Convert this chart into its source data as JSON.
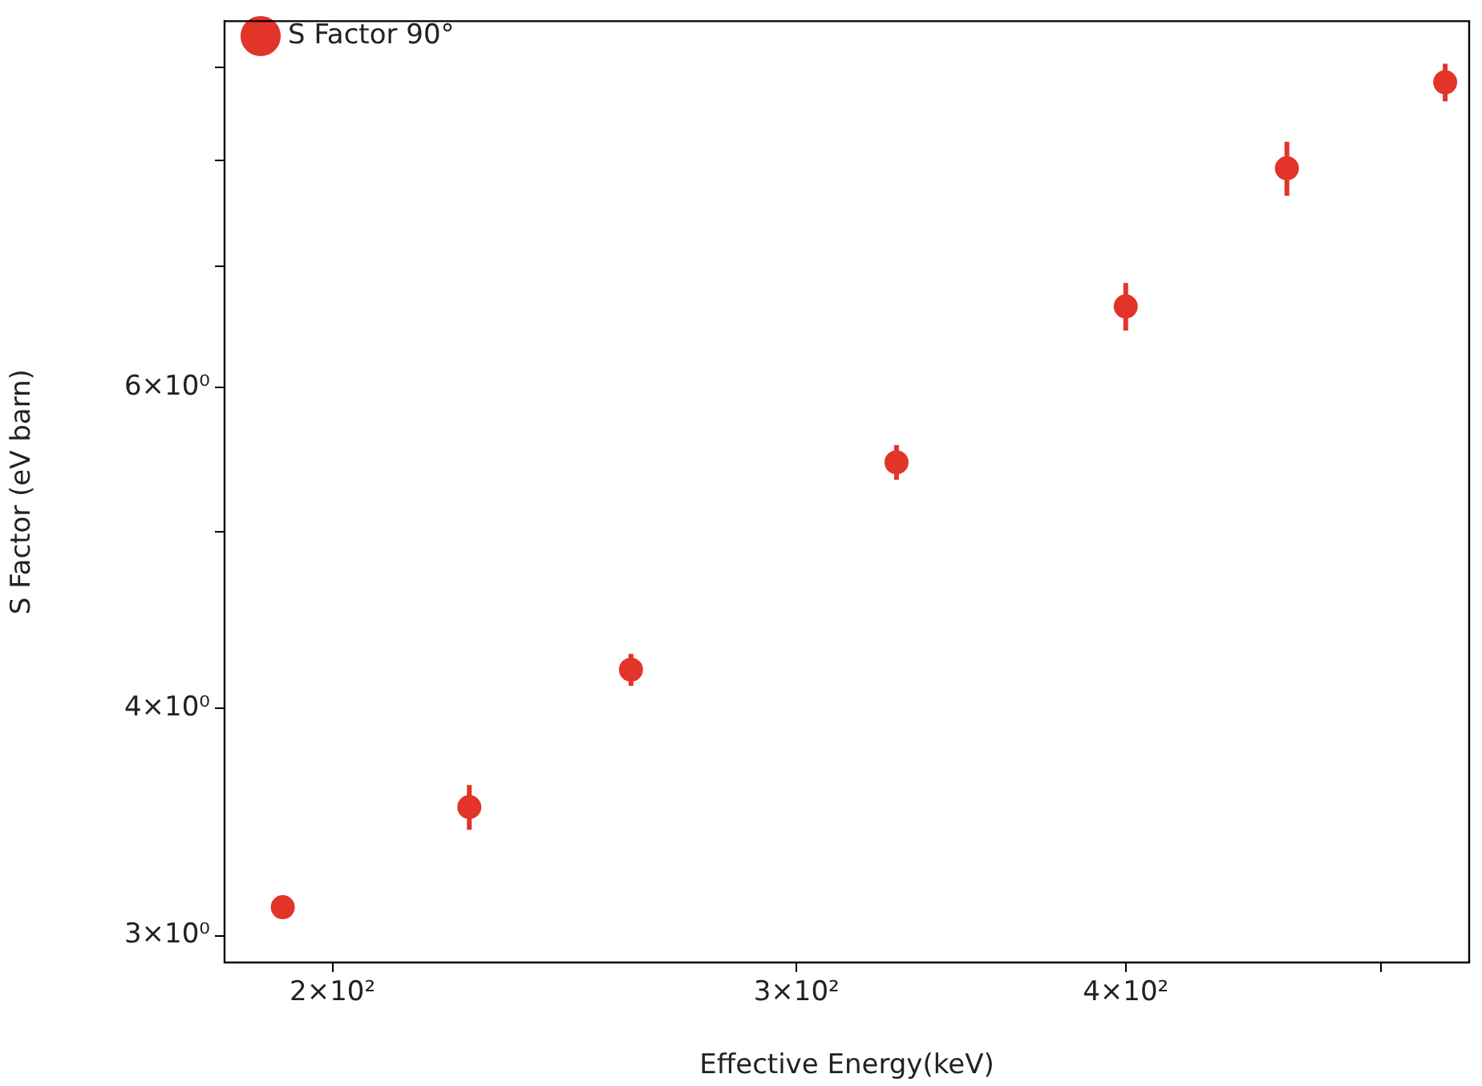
{
  "chart_data": {
    "type": "scatter",
    "xlabel": "Effective Energy(keV)",
    "ylabel": "S Factor (eV barn)",
    "x": [
      191.5,
      225.4,
      259.6,
      327.4,
      400,
      460.5,
      528.8
    ],
    "series": [
      {
        "name": "S Factor 90°",
        "color": "#e3342a",
        "values": [
          3.11,
          3.53,
          4.2,
          5.46,
          6.65,
          7.92,
          8.83
        ],
        "errors": [
          0.02,
          0.1,
          0.085,
          0.12,
          0.2,
          0.27,
          0.21
        ]
      }
    ],
    "log": "xy",
    "xlim": [
      182,
      540
    ],
    "ylim": [
      2.92,
      9.54
    ],
    "xticks": [
      {
        "value": 200,
        "label": "2×10²"
      },
      {
        "value": 300,
        "label": "3×10²"
      },
      {
        "value": 400,
        "label": "4×10²"
      },
      {
        "value": 500,
        "label": null
      }
    ],
    "yticks": [
      {
        "value": 3,
        "label": "3×10⁰"
      },
      {
        "value": 4,
        "label": "4×10⁰"
      },
      {
        "value": 5,
        "label": null
      },
      {
        "value": 6,
        "label": "6×10⁰"
      },
      {
        "value": 7,
        "label": null
      },
      {
        "value": 8,
        "label": null
      },
      {
        "value": 9,
        "label": null
      }
    ],
    "grid": false,
    "legend": "top left",
    "marker": "circle"
  }
}
